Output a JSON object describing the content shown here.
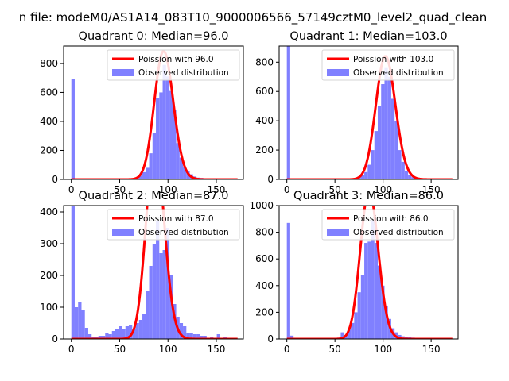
{
  "figure_title": "n file: modeM0/AS1A14_083T10_9000006566_57149cztM0_level2_quad_clean",
  "colors": {
    "histogram": "#8080ff",
    "poisson": "#ff0000",
    "background": "#ffffff"
  },
  "chart_data": [
    {
      "type": "bar",
      "title": "Quadrant 0: Median=96.0",
      "xlabel": "",
      "ylabel": "",
      "xlim": [
        -8,
        178
      ],
      "ylim": [
        0,
        920
      ],
      "xticks": [
        0,
        50,
        100,
        150
      ],
      "yticks": [
        0,
        200,
        400,
        600,
        800
      ],
      "legend": [
        "Poission with 96.0",
        "Observed distribution"
      ],
      "legend_location": "upper right",
      "median": 96,
      "bin_width": 3.5,
      "bins": [
        [
          0,
          690
        ],
        [
          3.5,
          5
        ],
        [
          55,
          3
        ],
        [
          63,
          8
        ],
        [
          66.5,
          10
        ],
        [
          70,
          25
        ],
        [
          73.5,
          50
        ],
        [
          77,
          80
        ],
        [
          80.5,
          180
        ],
        [
          84,
          320
        ],
        [
          87.5,
          560
        ],
        [
          91,
          600
        ],
        [
          94.5,
          790
        ],
        [
          98,
          710
        ],
        [
          101.5,
          610
        ],
        [
          105,
          480
        ],
        [
          108.5,
          250
        ],
        [
          112,
          150
        ],
        [
          115.5,
          85
        ],
        [
          119,
          60
        ],
        [
          122.5,
          35
        ],
        [
          126,
          20
        ],
        [
          129.5,
          12
        ],
        [
          133,
          10
        ],
        [
          136.5,
          6
        ],
        [
          140,
          4
        ],
        [
          147,
          2
        ],
        [
          154,
          1
        ]
      ]
    },
    {
      "type": "bar",
      "title": "Quadrant 1: Median=103.0",
      "xlabel": "",
      "ylabel": "",
      "xlim": [
        -8,
        178
      ],
      "ylim": [
        0,
        910
      ],
      "xticks": [
        0,
        50,
        100,
        150
      ],
      "yticks": [
        0,
        200,
        400,
        600,
        800
      ],
      "legend": [
        "Poission with 103.0",
        "Observed distribution"
      ],
      "legend_location": "upper right",
      "median": 103,
      "bin_width": 3.5,
      "bins": [
        [
          0,
          910
        ],
        [
          3.5,
          5
        ],
        [
          63,
          2
        ],
        [
          66.5,
          5
        ],
        [
          70,
          10
        ],
        [
          73.5,
          20
        ],
        [
          77,
          30
        ],
        [
          80.5,
          50
        ],
        [
          84,
          100
        ],
        [
          87.5,
          200
        ],
        [
          91,
          330
        ],
        [
          94.5,
          500
        ],
        [
          98,
          650
        ],
        [
          101.5,
          760
        ],
        [
          105,
          700
        ],
        [
          108.5,
          550
        ],
        [
          112,
          400
        ],
        [
          115.5,
          200
        ],
        [
          119,
          120
        ],
        [
          122.5,
          60
        ],
        [
          126,
          30
        ],
        [
          129.5,
          15
        ],
        [
          136.5,
          8
        ],
        [
          140,
          4
        ],
        [
          147,
          2
        ]
      ]
    },
    {
      "type": "bar",
      "title": "Quadrant 2: Median=87.0",
      "xlabel": "",
      "ylabel": "",
      "xlim": [
        -8,
        178
      ],
      "ylim": [
        0,
        420
      ],
      "xticks": [
        0,
        50,
        100,
        150
      ],
      "yticks": [
        0,
        100,
        200,
        300,
        400
      ],
      "legend": [
        "Poission with 87.0",
        "Observed distribution"
      ],
      "legend_location": "upper right",
      "median": 87,
      "bin_width": 3.5,
      "bins": [
        [
          0,
          420
        ],
        [
          3.5,
          100
        ],
        [
          7,
          115
        ],
        [
          10.5,
          90
        ],
        [
          14,
          35
        ],
        [
          17.5,
          15
        ],
        [
          21,
          5
        ],
        [
          24.5,
          5
        ],
        [
          28,
          10
        ],
        [
          31.5,
          10
        ],
        [
          35,
          20
        ],
        [
          38.5,
          15
        ],
        [
          42,
          25
        ],
        [
          45.5,
          30
        ],
        [
          49,
          40
        ],
        [
          52.5,
          30
        ],
        [
          56,
          40
        ],
        [
          59.5,
          45
        ],
        [
          63,
          30
        ],
        [
          66.5,
          50
        ],
        [
          70,
          60
        ],
        [
          73.5,
          80
        ],
        [
          77,
          150
        ],
        [
          80.5,
          230
        ],
        [
          84,
          300
        ],
        [
          87.5,
          370
        ],
        [
          91,
          270
        ],
        [
          94.5,
          280
        ],
        [
          98,
          350
        ],
        [
          101.5,
          200
        ],
        [
          105,
          110
        ],
        [
          108.5,
          70
        ],
        [
          112,
          50
        ],
        [
          115.5,
          40
        ],
        [
          119,
          20
        ],
        [
          122.5,
          20
        ],
        [
          126,
          15
        ],
        [
          129.5,
          15
        ],
        [
          133,
          10
        ],
        [
          136.5,
          10
        ],
        [
          143.5,
          5
        ],
        [
          150.5,
          15
        ],
        [
          157.5,
          5
        ]
      ]
    },
    {
      "type": "bar",
      "title": "Quadrant 3: Median=86.0",
      "xlabel": "",
      "ylabel": "",
      "xlim": [
        -8,
        178
      ],
      "ylim": [
        0,
        1000
      ],
      "xticks": [
        0,
        50,
        100,
        150
      ],
      "yticks": [
        0,
        200,
        400,
        600,
        800,
        1000
      ],
      "legend": [
        "Poission with 86.0",
        "Observed distribution"
      ],
      "legend_location": "upper right",
      "median": 86,
      "bin_width": 3.5,
      "bins": [
        [
          0,
          870
        ],
        [
          3.5,
          25
        ],
        [
          52.5,
          10
        ],
        [
          56,
          50
        ],
        [
          59.5,
          30
        ],
        [
          63,
          70
        ],
        [
          66.5,
          120
        ],
        [
          70,
          200
        ],
        [
          73.5,
          350
        ],
        [
          77,
          480
        ],
        [
          80.5,
          720
        ],
        [
          84,
          730
        ],
        [
          87.5,
          890
        ],
        [
          91,
          720
        ],
        [
          94.5,
          550
        ],
        [
          98,
          400
        ],
        [
          101.5,
          250
        ],
        [
          105,
          150
        ],
        [
          108.5,
          80
        ],
        [
          112,
          50
        ],
        [
          115.5,
          30
        ],
        [
          119,
          20
        ],
        [
          122.5,
          15
        ],
        [
          126,
          15
        ],
        [
          129.5,
          10
        ],
        [
          136.5,
          8
        ],
        [
          143.5,
          5
        ],
        [
          150.5,
          2
        ]
      ]
    }
  ]
}
